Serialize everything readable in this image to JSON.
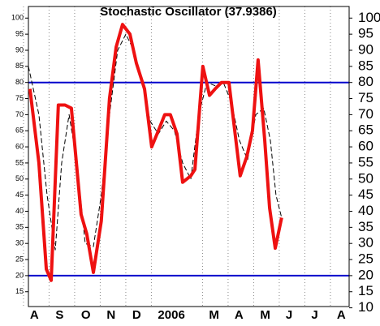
{
  "chart_data": {
    "type": "line",
    "title": "Stochastic Oscillator (37.9386)",
    "xlim": [
      -0.22,
      12.32
    ],
    "xticks": [
      {
        "value": 0,
        "label": "A"
      },
      {
        "value": 1,
        "label": "S"
      },
      {
        "value": 2,
        "label": "O"
      },
      {
        "value": 3,
        "label": "N"
      },
      {
        "value": 4,
        "label": "D"
      },
      {
        "value": 5,
        "label": "2006"
      },
      {
        "value": 7,
        "label": "M"
      },
      {
        "value": 8,
        "label": "A"
      },
      {
        "value": 9,
        "label": "M"
      },
      {
        "value": 10,
        "label": "J"
      },
      {
        "value": 11,
        "label": "J"
      },
      {
        "value": 12,
        "label": "A"
      }
    ],
    "ylim": [
      10.4,
      103.6
    ],
    "yticks": [
      15,
      20,
      25,
      30,
      35,
      40,
      45,
      50,
      55,
      60,
      65,
      70,
      75,
      80,
      85,
      90,
      95,
      100
    ],
    "y2lim": [
      10.4,
      103.6
    ],
    "y2ticks": [
      10,
      15,
      20,
      25,
      30,
      35,
      40,
      45,
      50,
      55,
      60,
      65,
      70,
      75,
      80,
      85,
      90,
      95,
      100
    ],
    "grid": true,
    "hlines": [
      {
        "value": 80,
        "color": "#0000cc"
      },
      {
        "value": 20,
        "color": "#0000cc"
      }
    ],
    "series": [
      {
        "color": "#ee1111",
        "dash": false,
        "x": [
          -0.16,
          0.19,
          0.48,
          0.67,
          0.95,
          1.21,
          1.46,
          1.84,
          2.06,
          2.32,
          2.63,
          2.95,
          3.21,
          3.46,
          3.75,
          4.0,
          4.32,
          4.6,
          4.86,
          5.11,
          5.33,
          5.59,
          5.81,
          6.13,
          6.29,
          6.6,
          6.86,
          7.08,
          7.33,
          7.62,
          8.06,
          8.32,
          8.54,
          8.76,
          9.02,
          9.21,
          9.43,
          9.68
        ],
        "values": [
          78,
          55,
          22,
          18.5,
          73,
          73,
          72,
          39,
          33,
          21,
          37,
          75,
          91,
          98,
          95,
          86,
          78,
          60,
          65,
          70,
          70,
          64,
          49,
          51,
          53,
          85,
          76,
          78,
          80,
          80,
          51,
          57,
          65,
          87,
          62,
          41,
          28.5,
          38
        ]
      },
      {
        "color": "#000000",
        "dash": true,
        "x": [
          -0.22,
          0.19,
          0.51,
          0.83,
          1.08,
          1.37,
          1.68,
          2.0,
          2.32,
          2.63,
          2.95,
          3.27,
          3.59,
          3.9,
          4.22,
          4.54,
          4.86,
          5.17,
          5.49,
          5.81,
          6.13,
          6.44,
          6.76,
          7.08,
          7.4,
          7.71,
          8.03,
          8.35,
          8.67,
          8.98,
          9.24,
          9.46,
          9.68
        ],
        "values": [
          85,
          70,
          45,
          28,
          55,
          70,
          55,
          30,
          29,
          45,
          70,
          90,
          95,
          90,
          80,
          68,
          64,
          68,
          65,
          55,
          50,
          70,
          80,
          79,
          80,
          74,
          62,
          56,
          70,
          72,
          62,
          45,
          38
        ]
      }
    ]
  }
}
